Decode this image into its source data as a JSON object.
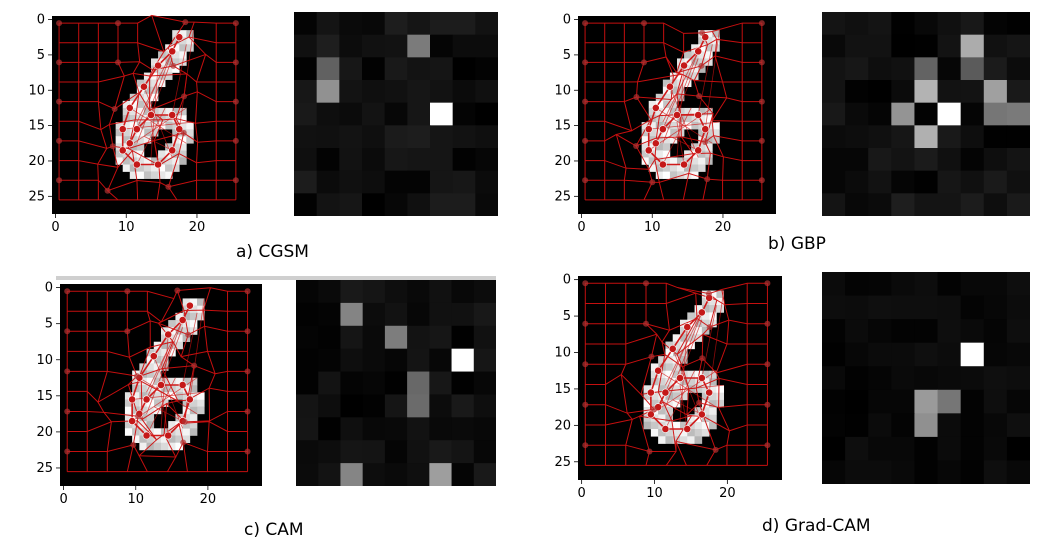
{
  "panels": [
    {
      "id": "a",
      "caption": "a) CGSM",
      "xticks": [
        "0",
        "10",
        "20"
      ],
      "yticks": [
        "0",
        "5",
        "10",
        "15",
        "20",
        "25"
      ]
    },
    {
      "id": "b",
      "caption": "b) GBP",
      "xticks": [
        "0",
        "10",
        "20"
      ],
      "yticks": [
        "0",
        "5",
        "10",
        "15",
        "20",
        "25"
      ]
    },
    {
      "id": "c",
      "caption": "c) CAM",
      "xticks": [
        "0",
        "10",
        "20"
      ],
      "yticks": [
        "0",
        "5",
        "10",
        "15",
        "20",
        "25"
      ]
    },
    {
      "id": "d",
      "caption": "d) Grad-CAM",
      "xticks": [
        "0",
        "10",
        "20"
      ],
      "yticks": [
        "0",
        "5",
        "10",
        "15",
        "20",
        "25"
      ]
    }
  ],
  "colors": {
    "mesh": "#d01010",
    "node": "#c41818",
    "digit": "#ffffff",
    "background": "#000000"
  }
}
